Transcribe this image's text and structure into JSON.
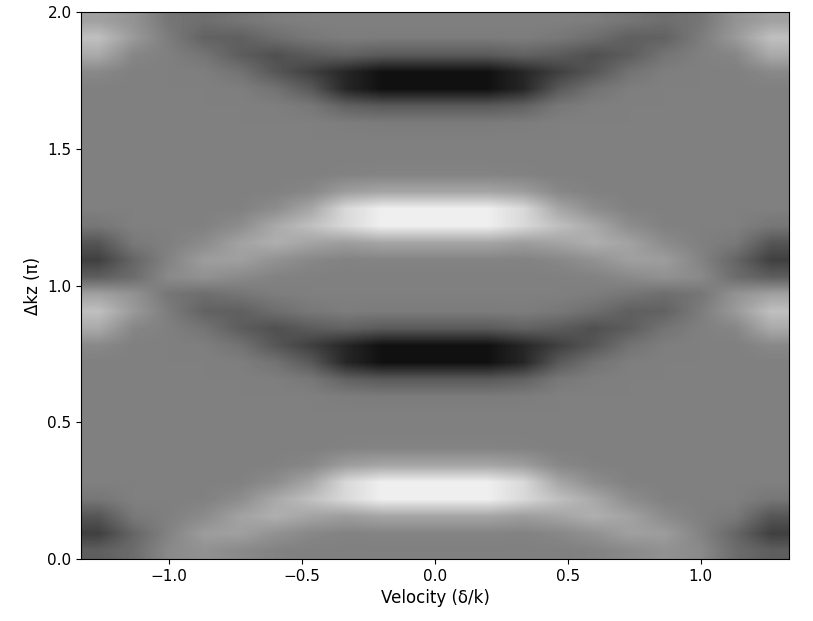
{
  "chart_data": {
    "type": "heatmap",
    "x_label": "Velocity (δ/k)",
    "y_label": "Δkz (π)",
    "xlim": [
      -1.33,
      1.33
    ],
    "ylim": [
      0,
      2
    ],
    "xticks": [
      {
        "value": -1.0,
        "label": "−1.0"
      },
      {
        "value": -0.5,
        "label": "−0.5"
      },
      {
        "value": 0.0,
        "label": "0.0"
      },
      {
        "value": 0.5,
        "label": "0.5"
      },
      {
        "value": 1.0,
        "label": "1.0"
      }
    ],
    "yticks": [
      {
        "value": 0.0,
        "label": "0.0"
      },
      {
        "value": 0.5,
        "label": "0.5"
      },
      {
        "value": 1.0,
        "label": "1.0"
      },
      {
        "value": 1.5,
        "label": "1.5"
      },
      {
        "value": 2.0,
        "label": "2.0"
      }
    ],
    "color": "gray",
    "color_range": [
      -1,
      1
    ],
    "cells": [
      [
        -0.26,
        -0.15,
        0.08,
        0.14,
        0.08,
        0.02,
        0,
        0,
        0,
        0,
        0,
        0,
        0,
        0,
        0.02,
        0.08,
        0.14,
        0.08,
        -0.15,
        -0.26
      ],
      [
        -0.5,
        -0.2,
        0.03,
        0.23,
        0.25,
        0.14,
        0.06,
        0.02,
        0.03,
        0.03,
        0.03,
        0.03,
        0.02,
        0.06,
        0.14,
        0.25,
        0.23,
        0.03,
        -0.2,
        -0.5
      ],
      [
        -0.33,
        -0.05,
        0,
        0.09,
        0.27,
        0.37,
        0.28,
        0.23,
        0.29,
        0.29,
        0.29,
        0.29,
        0.23,
        0.28,
        0.37,
        0.27,
        0.09,
        0,
        -0.05,
        -0.33
      ],
      [
        -0.07,
        0,
        0,
        0.01,
        0.1,
        0.32,
        0.5,
        0.7,
        0.87,
        0.87,
        0.87,
        0.87,
        0.7,
        0.5,
        0.32,
        0.1,
        0.01,
        0,
        0,
        -0.07
      ],
      [
        0,
        0,
        0,
        0,
        0.01,
        0.1,
        0.3,
        0.7,
        0.87,
        0.87,
        0.87,
        0.87,
        0.7,
        0.3,
        0.1,
        0.01,
        0,
        0,
        0,
        0
      ],
      [
        0,
        0,
        0,
        0,
        0,
        0.01,
        0.06,
        0.23,
        0.29,
        0.29,
        0.29,
        0.29,
        0.23,
        0.06,
        0.01,
        0,
        0,
        0,
        0,
        0
      ],
      [
        0,
        0,
        0,
        0,
        0,
        0,
        0,
        0.02,
        0.03,
        0.03,
        0.03,
        0.03,
        0.02,
        0,
        0,
        0,
        0,
        0,
        0,
        0
      ],
      [
        0,
        0,
        0,
        0,
        0,
        0,
        0,
        0,
        0,
        0,
        0,
        0,
        0,
        0,
        0,
        0,
        0,
        0,
        0,
        0
      ],
      [
        0,
        0,
        0,
        0,
        0,
        0,
        0,
        0,
        0,
        0,
        0,
        0,
        0,
        0,
        0,
        0,
        0,
        0,
        0,
        0
      ],
      [
        0,
        0,
        0,
        0,
        0,
        0,
        0,
        -0.02,
        -0.03,
        -0.03,
        -0.03,
        -0.03,
        -0.02,
        0,
        0,
        0,
        0,
        0,
        0,
        0
      ],
      [
        0,
        0,
        0,
        0,
        0,
        -0.01,
        -0.06,
        -0.23,
        -0.29,
        -0.29,
        -0.29,
        -0.29,
        -0.23,
        -0.06,
        -0.01,
        0,
        0,
        0,
        0,
        0
      ],
      [
        0,
        0,
        0,
        0,
        -0.01,
        -0.1,
        -0.3,
        -0.7,
        -0.87,
        -0.87,
        -0.87,
        -0.87,
        -0.7,
        -0.3,
        -0.1,
        -0.01,
        0,
        0,
        0,
        0
      ],
      [
        0.07,
        0,
        0,
        -0.01,
        -0.1,
        -0.32,
        -0.5,
        -0.7,
        -0.87,
        -0.87,
        -0.87,
        -0.87,
        -0.7,
        -0.5,
        -0.32,
        -0.1,
        -0.01,
        0,
        0,
        0.07
      ],
      [
        0.33,
        0.05,
        0,
        -0.09,
        -0.27,
        -0.37,
        -0.28,
        -0.23,
        -0.29,
        -0.29,
        -0.29,
        -0.29,
        -0.23,
        -0.28,
        -0.37,
        -0.27,
        -0.09,
        0,
        0.05,
        0.33
      ],
      [
        0.5,
        0.2,
        -0.03,
        -0.23,
        -0.25,
        -0.14,
        -0.06,
        -0.02,
        -0.03,
        -0.03,
        -0.03,
        -0.03,
        -0.02,
        -0.06,
        -0.14,
        -0.25,
        -0.23,
        -0.03,
        0.2,
        0.5
      ],
      [
        0.26,
        0.15,
        -0.08,
        -0.14,
        -0.08,
        -0.02,
        0,
        0,
        0,
        0,
        0,
        0,
        0,
        0,
        -0.02,
        -0.08,
        -0.14,
        -0.08,
        0.15,
        0.26
      ],
      [
        -0.26,
        -0.15,
        0.08,
        0.14,
        0.08,
        0.02,
        0,
        0,
        0,
        0,
        0,
        0,
        0,
        0,
        0.02,
        0.08,
        0.14,
        0.08,
        -0.15,
        -0.26
      ],
      [
        -0.5,
        -0.2,
        0.03,
        0.23,
        0.25,
        0.14,
        0.06,
        0.02,
        0.03,
        0.03,
        0.03,
        0.03,
        0.02,
        0.06,
        0.14,
        0.25,
        0.23,
        0.03,
        -0.2,
        -0.5
      ],
      [
        -0.33,
        -0.05,
        0,
        0.09,
        0.27,
        0.37,
        0.28,
        0.23,
        0.29,
        0.29,
        0.29,
        0.29,
        0.23,
        0.28,
        0.37,
        0.27,
        0.09,
        0,
        -0.05,
        -0.33
      ],
      [
        -0.07,
        0,
        0,
        0.01,
        0.1,
        0.32,
        0.5,
        0.7,
        0.87,
        0.87,
        0.87,
        0.87,
        0.7,
        0.5,
        0.32,
        0.1,
        0.01,
        0,
        0,
        -0.07
      ],
      [
        0,
        0,
        0,
        0,
        0.01,
        0.1,
        0.3,
        0.7,
        0.87,
        0.87,
        0.87,
        0.87,
        0.7,
        0.3,
        0.1,
        0.01,
        0,
        0,
        0,
        0
      ],
      [
        0,
        0,
        0,
        0,
        0,
        0.01,
        0.06,
        0.23,
        0.29,
        0.29,
        0.29,
        0.29,
        0.23,
        0.06,
        0.01,
        0,
        0,
        0,
        0,
        0
      ],
      [
        0,
        0,
        0,
        0,
        0,
        0,
        0,
        0.02,
        0.03,
        0.03,
        0.03,
        0.03,
        0.02,
        0,
        0,
        0,
        0,
        0,
        0,
        0
      ],
      [
        0,
        0,
        0,
        0,
        0,
        0,
        0,
        0,
        0,
        0,
        0,
        0,
        0,
        0,
        0,
        0,
        0,
        0,
        0,
        0
      ],
      [
        0,
        0,
        0,
        0,
        0,
        0,
        0,
        0,
        0,
        0,
        0,
        0,
        0,
        0,
        0,
        0,
        0,
        0,
        0,
        0
      ],
      [
        0,
        0,
        0,
        0,
        0,
        0,
        0,
        -0.02,
        -0.03,
        -0.03,
        -0.03,
        -0.03,
        -0.02,
        0,
        0,
        0,
        0,
        0,
        0,
        0
      ],
      [
        0,
        0,
        0,
        0,
        0,
        -0.01,
        -0.06,
        -0.23,
        -0.29,
        -0.29,
        -0.29,
        -0.29,
        -0.23,
        -0.06,
        -0.01,
        0,
        0,
        0,
        0,
        0
      ],
      [
        0,
        0,
        0,
        0,
        -0.01,
        -0.1,
        -0.3,
        -0.7,
        -0.87,
        -0.87,
        -0.87,
        -0.87,
        -0.7,
        -0.3,
        -0.1,
        -0.01,
        0,
        0,
        0,
        0
      ],
      [
        0.07,
        0,
        0,
        -0.01,
        -0.1,
        -0.32,
        -0.5,
        -0.7,
        -0.87,
        -0.87,
        -0.87,
        -0.87,
        -0.7,
        -0.5,
        -0.32,
        -0.1,
        -0.01,
        0,
        0,
        0.07
      ],
      [
        0.33,
        0.05,
        0,
        -0.09,
        -0.27,
        -0.37,
        -0.28,
        -0.23,
        -0.29,
        -0.29,
        -0.29,
        -0.29,
        -0.23,
        -0.28,
        -0.37,
        -0.27,
        -0.09,
        0,
        0.05,
        0.33
      ],
      [
        0.5,
        0.2,
        -0.03,
        -0.23,
        -0.25,
        -0.14,
        -0.06,
        -0.02,
        -0.03,
        -0.03,
        -0.03,
        -0.03,
        -0.02,
        -0.06,
        -0.14,
        -0.25,
        -0.23,
        -0.03,
        0.2,
        0.5
      ],
      [
        0.26,
        0.15,
        -0.08,
        -0.14,
        -0.08,
        -0.02,
        0,
        0,
        0,
        0,
        0,
        0,
        0,
        0,
        -0.02,
        -0.08,
        -0.14,
        -0.08,
        0.15,
        0.26
      ]
    ]
  }
}
